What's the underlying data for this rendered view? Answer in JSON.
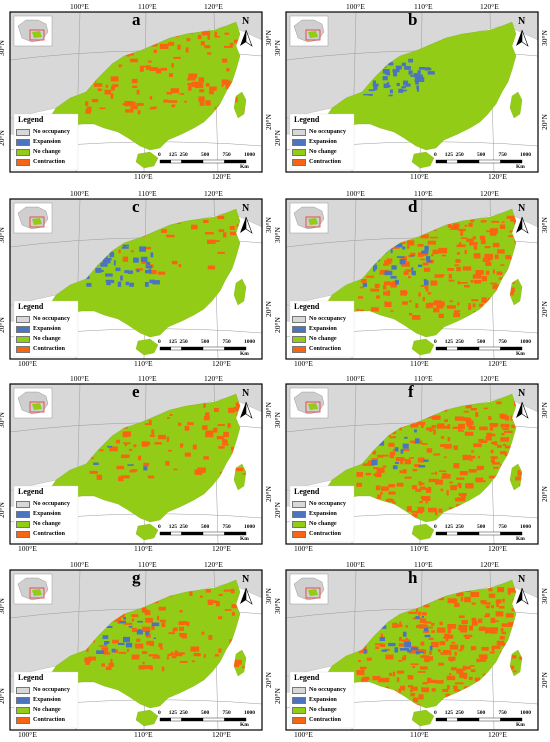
{
  "colors": {
    "no_occupancy": "#d8d8d8",
    "expansion": "#4a74c0",
    "no_change": "#93cc16",
    "contraction": "#f96412",
    "sea": "#ffffff",
    "other_land": "#e9e9e9",
    "frame": "#000000"
  },
  "common": {
    "top_lon_ticks": [
      "100°E",
      "110°E",
      "120°E"
    ],
    "bottom_lon_ticks": [
      "110°E",
      "120°E"
    ],
    "bottom_lon_ticks_left": [
      "100°E"
    ],
    "left_lat_ticks": [
      "30°N",
      "20°N"
    ],
    "right_lat_ticks": [
      "30°N",
      "20°N"
    ],
    "north_label": "N",
    "legend": {
      "title": "Legend",
      "items": [
        {
          "key": "no_occupancy",
          "label": "No occupancy"
        },
        {
          "key": "expansion",
          "label": "Expansion"
        },
        {
          "key": "no_change",
          "label": "No change"
        },
        {
          "key": "contraction",
          "label": "Contraction"
        }
      ]
    },
    "scale": {
      "ticks": [
        "0",
        "125",
        "250",
        "500",
        "750",
        "1000"
      ],
      "unit": "Km"
    }
  },
  "panels": [
    {
      "id": "a",
      "label": "a",
      "contraction": 0.28,
      "expansion": 0.0
    },
    {
      "id": "b",
      "label": "b",
      "contraction": 0.0,
      "expansion": 0.14
    },
    {
      "id": "c",
      "label": "c",
      "contraction": 0.08,
      "expansion": 0.12
    },
    {
      "id": "d",
      "label": "d",
      "contraction": 0.42,
      "expansion": 0.08
    },
    {
      "id": "e",
      "label": "e",
      "contraction": 0.22,
      "expansion": 0.01
    },
    {
      "id": "f",
      "label": "f",
      "contraction": 0.62,
      "expansion": 0.04
    },
    {
      "id": "g",
      "label": "g",
      "contraction": 0.26,
      "expansion": 0.06
    },
    {
      "id": "h",
      "label": "h",
      "contraction": 0.6,
      "expansion": 0.06
    }
  ]
}
